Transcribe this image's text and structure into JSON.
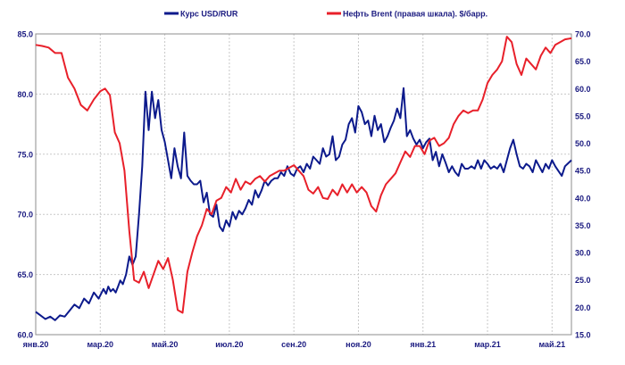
{
  "chart_data": {
    "type": "line",
    "title": "",
    "legend": {
      "placement": "top-center"
    },
    "grid": true,
    "x_ticks": [
      "янв.20",
      "мар.20",
      "май.20",
      "июл.20",
      "сен.20",
      "ноя.20",
      "янв.21",
      "мар.21",
      "май.21"
    ],
    "y_left": {
      "min": 60,
      "max": 85,
      "ticks": [
        "60.0",
        "65.0",
        "70.0",
        "75.0",
        "80.0",
        "85.0"
      ]
    },
    "y_right": {
      "min": 15,
      "max": 70,
      "ticks": [
        "15.0",
        "20.0",
        "25.0",
        "30.0",
        "35.0",
        "40.0",
        "45.0",
        "50.0",
        "55.0",
        "60.0",
        "65.0",
        "70.0"
      ]
    },
    "series": [
      {
        "name": "Курс USD/RUR",
        "color": "#0c1a8c",
        "axis": "left",
        "x": [
          0.0,
          0.15,
          0.3,
          0.45,
          0.6,
          0.75,
          0.9,
          1.05,
          1.2,
          1.35,
          1.5,
          1.65,
          1.8,
          1.95,
          2.1,
          2.18,
          2.25,
          2.32,
          2.4,
          2.48,
          2.55,
          2.62,
          2.7,
          2.8,
          2.9,
          3.0,
          3.1,
          3.2,
          3.3,
          3.4,
          3.5,
          3.6,
          3.7,
          3.8,
          3.9,
          4.0,
          4.1,
          4.2,
          4.3,
          4.4,
          4.5,
          4.6,
          4.7,
          4.8,
          4.9,
          5.0,
          5.1,
          5.2,
          5.3,
          5.4,
          5.5,
          5.6,
          5.7,
          5.8,
          5.9,
          6.0,
          6.1,
          6.2,
          6.3,
          6.4,
          6.5,
          6.6,
          6.7,
          6.8,
          6.9,
          7.0,
          7.1,
          7.2,
          7.3,
          7.4,
          7.5,
          7.6,
          7.7,
          7.8,
          7.9,
          8.0,
          8.1,
          8.2,
          8.3,
          8.4,
          8.5,
          8.6,
          8.7,
          8.8,
          8.9,
          9.0,
          9.1,
          9.2,
          9.3,
          9.4,
          9.5,
          9.6,
          9.7,
          9.8,
          9.9,
          10.0,
          10.1,
          10.2,
          10.3,
          10.4,
          10.5,
          10.6,
          10.7,
          10.8,
          10.9,
          11.0,
          11.1,
          11.2,
          11.3,
          11.4,
          11.5,
          11.6,
          11.7,
          11.8,
          11.9,
          12.0,
          12.1,
          12.2,
          12.3,
          12.4,
          12.5,
          12.6,
          12.7,
          12.8,
          12.9,
          13.0,
          13.1,
          13.2,
          13.3,
          13.4,
          13.5,
          13.6,
          13.7,
          13.8,
          13.9,
          14.0,
          14.1,
          14.2,
          14.3,
          14.4,
          14.5,
          14.6,
          14.7,
          14.8,
          14.9,
          15.0,
          15.1,
          15.2,
          15.3,
          15.4,
          15.5,
          15.6,
          15.7,
          15.8,
          15.9,
          16.0,
          16.1,
          16.2,
          16.3,
          16.4,
          16.6
        ],
        "values": [
          61.9,
          61.6,
          61.3,
          61.5,
          61.2,
          61.6,
          61.5,
          62.0,
          62.5,
          62.2,
          63.0,
          62.6,
          63.5,
          63.0,
          63.8,
          63.4,
          64.0,
          63.6,
          63.8,
          63.5,
          64.0,
          64.5,
          64.2,
          65.0,
          66.5,
          65.8,
          66.5,
          70.0,
          74.0,
          80.2,
          77.0,
          80.2,
          78.0,
          79.5,
          77.0,
          76.0,
          74.5,
          73.0,
          75.5,
          74.0,
          73.0,
          76.8,
          73.2,
          72.8,
          72.5,
          72.5,
          72.8,
          71.0,
          71.8,
          70.0,
          69.8,
          70.8,
          69.0,
          68.6,
          69.5,
          69.0,
          70.2,
          69.6,
          70.3,
          70.0,
          70.5,
          71.2,
          70.8,
          72.0,
          71.4,
          72.0,
          72.8,
          72.4,
          72.8,
          73.0,
          73.0,
          73.5,
          73.2,
          74.0,
          73.4,
          73.2,
          73.8,
          74.0,
          73.5,
          74.2,
          73.8,
          74.8,
          74.5,
          74.2,
          75.5,
          74.8,
          75.0,
          76.5,
          74.5,
          74.8,
          75.8,
          76.2,
          77.5,
          78.0,
          76.8,
          79.0,
          78.5,
          77.5,
          77.8,
          76.5,
          78.2,
          77.0,
          77.5,
          76.0,
          76.5,
          77.2,
          77.8,
          78.8,
          78.0,
          80.5,
          76.5,
          77.0,
          76.3,
          75.8,
          76.2,
          75.5,
          76.0,
          76.3,
          74.5,
          75.2,
          74.0,
          75.0,
          74.3,
          73.5,
          74.0,
          73.5,
          73.2,
          74.2,
          73.8,
          73.8,
          74.0,
          73.8,
          74.5,
          73.8,
          74.5,
          74.2,
          73.8,
          74.0,
          73.8,
          74.2,
          73.5,
          74.5,
          75.5,
          76.2,
          75.0,
          74.0,
          73.8,
          74.2,
          74.0,
          73.5,
          74.5,
          74.0,
          73.5,
          74.2,
          73.8,
          74.5,
          74.0,
          73.6,
          73.2,
          74.0,
          74.5
        ]
      },
      {
        "name": "Нефть Brent (правая шкала). $/барр.",
        "color": "#e8202a",
        "axis": "right",
        "x": [
          0.0,
          0.2,
          0.4,
          0.6,
          0.8,
          1.0,
          1.2,
          1.4,
          1.6,
          1.8,
          2.0,
          2.15,
          2.3,
          2.45,
          2.6,
          2.75,
          2.9,
          3.05,
          3.2,
          3.35,
          3.5,
          3.65,
          3.8,
          3.95,
          4.1,
          4.25,
          4.4,
          4.55,
          4.7,
          4.85,
          5.0,
          5.15,
          5.3,
          5.45,
          5.6,
          5.75,
          5.9,
          6.05,
          6.2,
          6.35,
          6.5,
          6.65,
          6.8,
          6.95,
          7.1,
          7.25,
          7.4,
          7.55,
          7.7,
          7.85,
          8.0,
          8.15,
          8.3,
          8.45,
          8.6,
          8.75,
          8.9,
          9.05,
          9.2,
          9.35,
          9.5,
          9.65,
          9.8,
          9.95,
          10.1,
          10.25,
          10.4,
          10.55,
          10.7,
          10.85,
          11.0,
          11.15,
          11.3,
          11.45,
          11.6,
          11.75,
          11.9,
          12.05,
          12.2,
          12.35,
          12.5,
          12.65,
          12.8,
          12.95,
          13.1,
          13.25,
          13.4,
          13.55,
          13.7,
          13.85,
          14.0,
          14.15,
          14.3,
          14.45,
          14.6,
          14.75,
          14.9,
          15.05,
          15.2,
          15.35,
          15.5,
          15.65,
          15.8,
          15.95,
          16.1,
          16.25,
          16.4,
          16.6
        ],
        "values": [
          68.0,
          67.8,
          67.5,
          66.5,
          66.5,
          62.0,
          60.0,
          57.0,
          56.0,
          58.0,
          59.5,
          60.0,
          58.8,
          52.0,
          50.0,
          45.0,
          34.0,
          25.0,
          24.5,
          26.5,
          23.5,
          26.0,
          28.5,
          27.0,
          29.0,
          25.0,
          19.5,
          19.0,
          26.5,
          30.0,
          33.0,
          35.0,
          38.0,
          37.0,
          39.5,
          40.0,
          42.0,
          41.0,
          43.5,
          41.5,
          43.0,
          42.5,
          43.5,
          44.0,
          43.0,
          44.0,
          44.5,
          45.0,
          45.0,
          45.5,
          46.0,
          45.0,
          44.0,
          41.5,
          40.8,
          42.0,
          40.0,
          39.8,
          41.5,
          40.5,
          42.5,
          41.0,
          42.5,
          41.0,
          42.0,
          41.0,
          38.5,
          37.5,
          40.5,
          42.5,
          43.5,
          44.5,
          46.5,
          48.5,
          47.5,
          49.5,
          49.5,
          48.0,
          50.5,
          51.0,
          49.5,
          50.0,
          51.0,
          53.5,
          55.0,
          56.0,
          55.5,
          56.0,
          56.0,
          58.0,
          61.0,
          62.5,
          63.5,
          65.0,
          69.5,
          68.5,
          64.5,
          62.5,
          65.5,
          64.5,
          63.5,
          66.0,
          67.5,
          66.5,
          68.0,
          68.5,
          69.0,
          69.2
        ]
      }
    ]
  }
}
